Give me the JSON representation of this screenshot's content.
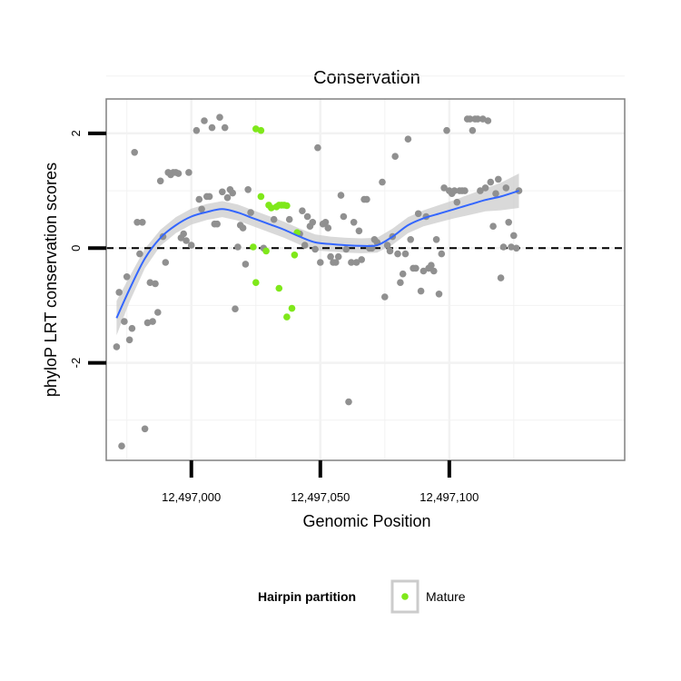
{
  "chart_data": {
    "type": "scatter",
    "title": "Conservation",
    "xlabel": "Genomic Position",
    "ylabel": "phyloP LRT conservation scores",
    "xlim": [
      12496967,
      12497168
    ],
    "ylim": [
      -3.7,
      2.6
    ],
    "x_ticks": [
      {
        "value": 12497000,
        "label": "12,497,000"
      },
      {
        "value": 12497050,
        "label": "12,497,050"
      },
      {
        "value": 12497100,
        "label": "12,497,100"
      }
    ],
    "y_ticks": [
      {
        "value": -2,
        "label": "-2"
      },
      {
        "value": 0,
        "label": "0"
      },
      {
        "value": 2,
        "label": "2"
      }
    ],
    "grid": true,
    "reference_line": {
      "y": 0,
      "style": "dashed"
    },
    "legend": {
      "title": "Hairpin partition",
      "position": "bottom",
      "entries": [
        {
          "label": "Mature",
          "color": "#7FE81A"
        }
      ]
    },
    "colors": {
      "points_other": "#909090",
      "points_mature": "#7FE81A",
      "smooth_line": "#3366FF",
      "confidence_band": "#CCCCCC"
    },
    "series": [
      {
        "name": "Mature",
        "color": "#7FE81A",
        "points": [
          [
            12497025,
            2.08
          ],
          [
            12497027,
            2.05
          ],
          [
            12497024,
            0.02
          ],
          [
            12497025,
            -0.6
          ],
          [
            12497027,
            0.9
          ],
          [
            12497029,
            -0.05
          ],
          [
            12497030,
            0.75
          ],
          [
            12497031,
            0.7
          ],
          [
            12497033,
            0.72
          ],
          [
            12497034,
            0.75
          ],
          [
            12497035,
            0.75
          ],
          [
            12497036,
            0.75
          ],
          [
            12497037,
            0.74
          ],
          [
            12497034,
            -0.7
          ],
          [
            12497037,
            -1.2
          ],
          [
            12497039,
            -1.05
          ],
          [
            12497040,
            -0.12
          ],
          [
            12497041,
            0.27
          ]
        ]
      },
      {
        "points": [
          [
            12496971,
            -1.72
          ],
          [
            12496972,
            -0.77
          ],
          [
            12496973,
            -3.45
          ],
          [
            12496974,
            -1.28
          ],
          [
            12496975,
            -0.5
          ],
          [
            12496976,
            -1.6
          ],
          [
            12496977,
            -1.4
          ],
          [
            12496978,
            1.67
          ],
          [
            12496979,
            0.45
          ],
          [
            12496980,
            -0.1
          ],
          [
            12496981,
            0.45
          ],
          [
            12496982,
            -3.15
          ],
          [
            12496983,
            -1.3
          ],
          [
            12496984,
            -0.6
          ],
          [
            12496985,
            -1.28
          ],
          [
            12496986,
            -0.62
          ],
          [
            12496987,
            -1.12
          ],
          [
            12496988,
            1.17
          ],
          [
            12496989,
            0.2
          ],
          [
            12496990,
            -0.25
          ],
          [
            12496991,
            1.32
          ],
          [
            12496992,
            1.28
          ],
          [
            12496993,
            1.32
          ],
          [
            12496994,
            1.32
          ],
          [
            12496995,
            1.3
          ],
          [
            12496996,
            0.18
          ],
          [
            12496997,
            0.25
          ],
          [
            12496998,
            0.13
          ],
          [
            12496999,
            1.32
          ],
          [
            12497000,
            0.05
          ],
          [
            12497002,
            2.05
          ],
          [
            12497003,
            0.85
          ],
          [
            12497004,
            0.68
          ],
          [
            12497005,
            2.22
          ],
          [
            12497006,
            0.9
          ],
          [
            12497007,
            0.9
          ],
          [
            12497008,
            2.1
          ],
          [
            12497009,
            0.42
          ],
          [
            12497010,
            0.42
          ],
          [
            12497011,
            2.28
          ],
          [
            12497012,
            0.98
          ],
          [
            12497013,
            2.1
          ],
          [
            12497014,
            0.88
          ],
          [
            12497015,
            1.02
          ],
          [
            12497016,
            0.96
          ],
          [
            12497017,
            -1.06
          ],
          [
            12497018,
            0.02
          ],
          [
            12497019,
            0.4
          ],
          [
            12497020,
            0.35
          ],
          [
            12497021,
            -0.28
          ],
          [
            12497022,
            1.02
          ],
          [
            12497023,
            0.62
          ],
          [
            12497028,
            0.0
          ],
          [
            12497032,
            0.5
          ],
          [
            12497038,
            0.5
          ],
          [
            12497042,
            0.25
          ],
          [
            12497043,
            0.65
          ],
          [
            12497044,
            0.05
          ],
          [
            12497045,
            0.55
          ],
          [
            12497046,
            0.38
          ],
          [
            12497047,
            0.45
          ],
          [
            12497048,
            -0.02
          ],
          [
            12497049,
            1.75
          ],
          [
            12497050,
            -0.25
          ],
          [
            12497051,
            0.42
          ],
          [
            12497052,
            0.45
          ],
          [
            12497053,
            0.35
          ],
          [
            12497054,
            -0.15
          ],
          [
            12497055,
            -0.25
          ],
          [
            12497056,
            -0.25
          ],
          [
            12497057,
            -0.15
          ],
          [
            12497058,
            0.92
          ],
          [
            12497059,
            0.55
          ],
          [
            12497060,
            -0.02
          ],
          [
            12497061,
            -2.68
          ],
          [
            12497062,
            -0.25
          ],
          [
            12497063,
            0.45
          ],
          [
            12497064,
            -0.25
          ],
          [
            12497065,
            0.3
          ],
          [
            12497066,
            -0.2
          ],
          [
            12497067,
            0.85
          ],
          [
            12497068,
            0.85
          ],
          [
            12497069,
            0.0
          ],
          [
            12497070,
            0.0
          ],
          [
            12497071,
            0.15
          ],
          [
            12497072,
            0.1
          ],
          [
            12497074,
            1.15
          ],
          [
            12497075,
            -0.85
          ],
          [
            12497076,
            0.05
          ],
          [
            12497077,
            -0.05
          ],
          [
            12497078,
            0.2
          ],
          [
            12497079,
            1.6
          ],
          [
            12497080,
            -0.1
          ],
          [
            12497081,
            -0.6
          ],
          [
            12497082,
            -0.45
          ],
          [
            12497083,
            -0.1
          ],
          [
            12497084,
            1.9
          ],
          [
            12497085,
            0.15
          ],
          [
            12497086,
            -0.35
          ],
          [
            12497087,
            -0.35
          ],
          [
            12497088,
            0.6
          ],
          [
            12497089,
            -0.75
          ],
          [
            12497090,
            -0.4
          ],
          [
            12497091,
            0.55
          ],
          [
            12497092,
            -0.35
          ],
          [
            12497093,
            -0.3
          ],
          [
            12497094,
            -0.4
          ],
          [
            12497095,
            0.15
          ],
          [
            12497096,
            -0.8
          ],
          [
            12497097,
            -0.1
          ],
          [
            12497098,
            1.05
          ],
          [
            12497099,
            2.05
          ],
          [
            12497100,
            1.0
          ],
          [
            12497101,
            0.95
          ],
          [
            12497102,
            1.0
          ],
          [
            12497103,
            0.8
          ],
          [
            12497104,
            1.0
          ],
          [
            12497105,
            1.0
          ],
          [
            12497106,
            1.0
          ],
          [
            12497107,
            2.25
          ],
          [
            12497108,
            2.25
          ],
          [
            12497109,
            2.05
          ],
          [
            12497110,
            2.25
          ],
          [
            12497111,
            2.25
          ],
          [
            12497112,
            1.0
          ],
          [
            12497113,
            2.25
          ],
          [
            12497114,
            1.05
          ],
          [
            12497115,
            2.22
          ],
          [
            12497116,
            1.15
          ],
          [
            12497117,
            0.38
          ],
          [
            12497118,
            0.95
          ],
          [
            12497119,
            1.2
          ],
          [
            12497120,
            -0.52
          ],
          [
            12497121,
            0.02
          ],
          [
            12497122,
            1.05
          ],
          [
            12497123,
            0.45
          ],
          [
            12497124,
            0.02
          ],
          [
            12497125,
            0.22
          ],
          [
            12497126,
            0.0
          ],
          [
            12497127,
            1.0
          ]
        ]
      }
    ],
    "smooth": {
      "x": [
        12496971,
        12496976,
        12496982,
        12496988,
        12496994,
        12497000,
        12497006,
        12497012,
        12497018,
        12497024,
        12497030,
        12497036,
        12497042,
        12497048,
        12497054,
        12497060,
        12497066,
        12497072,
        12497078,
        12497084,
        12497090,
        12497096,
        12497102,
        12497108,
        12497114,
        12497120,
        12497127
      ],
      "y": [
        -1.22,
        -0.72,
        -0.18,
        0.18,
        0.4,
        0.55,
        0.63,
        0.68,
        0.62,
        0.52,
        0.42,
        0.32,
        0.2,
        0.1,
        0.07,
        0.05,
        0.04,
        0.05,
        0.2,
        0.4,
        0.52,
        0.6,
        0.68,
        0.76,
        0.84,
        0.9,
        1.0
      ],
      "band": [
        0.3,
        0.22,
        0.17,
        0.14,
        0.14,
        0.14,
        0.14,
        0.14,
        0.14,
        0.14,
        0.14,
        0.14,
        0.14,
        0.14,
        0.13,
        0.13,
        0.13,
        0.13,
        0.14,
        0.14,
        0.14,
        0.15,
        0.16,
        0.18,
        0.2,
        0.24,
        0.3
      ]
    }
  }
}
